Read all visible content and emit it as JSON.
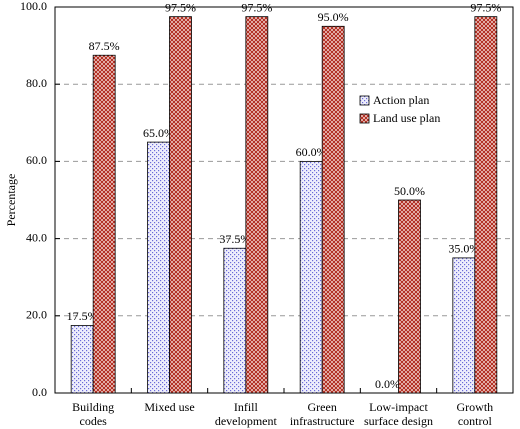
{
  "chart_data": {
    "type": "bar",
    "y_label": "Percentage",
    "categories": [
      [
        "Building",
        "codes"
      ],
      [
        "Mixed use"
      ],
      [
        "Infill",
        "development"
      ],
      [
        "Green",
        "infrastructure"
      ],
      [
        "Low-impact",
        "surface design"
      ],
      [
        "Growth",
        "control"
      ]
    ],
    "series": [
      {
        "name": "Action plan",
        "color": "#6a6ad8",
        "values": [
          17.5,
          65.0,
          37.5,
          60.0,
          0.0,
          35.0
        ],
        "value_labels": [
          "17.5%",
          "65.0%",
          "37.5%",
          "60.0%",
          "0.0%",
          "35.0%"
        ]
      },
      {
        "name": "Land use plan",
        "color": "#b0281c",
        "values": [
          87.5,
          97.5,
          97.5,
          95.0,
          50.0,
          97.5
        ],
        "value_labels": [
          "87.5%",
          "97.5%",
          "97.5%",
          "95.0%",
          "50.0%",
          "97.5%"
        ]
      }
    ],
    "ylim": [
      0,
      100
    ],
    "yticks": [
      {
        "value": 0,
        "label": "0.0"
      },
      {
        "value": 20,
        "label": "20.0"
      },
      {
        "value": 40,
        "label": "40.0"
      },
      {
        "value": 60,
        "label": "60.0"
      },
      {
        "value": 80,
        "label": "80.0"
      },
      {
        "value": 100,
        "label": "100.0"
      }
    ],
    "grid": true
  }
}
